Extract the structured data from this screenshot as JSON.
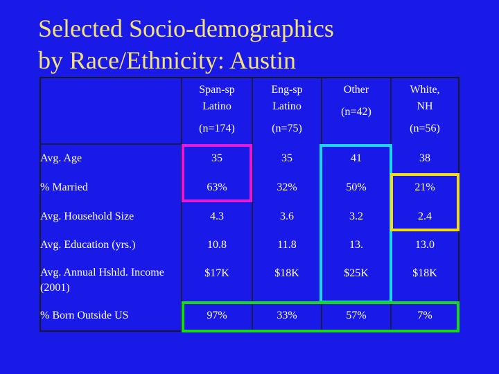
{
  "title": {
    "line1": "Selected Socio-demographics",
    "line2": "by Race/Ethnicity: Austin"
  },
  "table": {
    "columns": [
      {
        "line1": "Span-sp",
        "line2": "Latino",
        "n": "(n=174)"
      },
      {
        "line1": "Eng-sp",
        "line2": "Latino",
        "n": "(n=75)"
      },
      {
        "line1": "Other",
        "line2": "",
        "n": "(n=42)"
      },
      {
        "line1": "White,",
        "line2": "NH",
        "n": "(n=56)"
      }
    ],
    "rows": [
      {
        "label": "Avg. Age",
        "values": [
          "35",
          "35",
          "41",
          "38"
        ]
      },
      {
        "label": "% Married",
        "values": [
          "63%",
          "32%",
          "50%",
          "21%"
        ]
      },
      {
        "label": "Avg. Household Size",
        "values": [
          "4.3",
          "3.6",
          "3.2",
          "2.4"
        ]
      },
      {
        "label": "Avg. Education (yrs.)",
        "values": [
          "10.8",
          "11.8",
          "13.",
          "13.0"
        ]
      },
      {
        "label": "Avg. Annual Hshld. Income (2001)",
        "values": [
          "$17K",
          "$18K",
          "$25K",
          "$18K"
        ]
      },
      {
        "label": "% Born Outside US",
        "values": [
          "97%",
          "33%",
          "57%",
          "7%"
        ]
      }
    ]
  },
  "highlight_colors": {
    "magenta": "#e51ad5",
    "cyan": "#1ad6f0",
    "yellow": "#f2de10",
    "green": "#18d818",
    "grid": "#1a1a1a"
  }
}
